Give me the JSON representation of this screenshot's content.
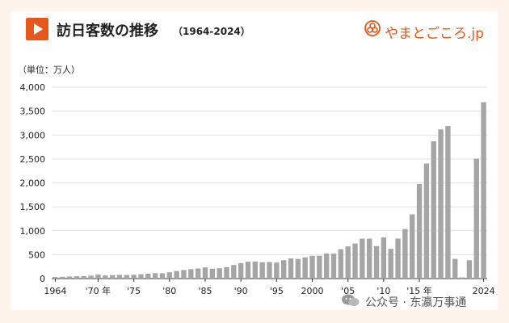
{
  "header": {
    "title": "訪日客数の推移",
    "subtitle": "（1964-2024）",
    "logo_text": "やまとごころ.jp",
    "play_icon": "play-icon",
    "logo_icon": "yamato-crest-icon"
  },
  "watermark": "公众号 · 东瀛万事通",
  "colors": {
    "accent": "#e8571a",
    "bar": "#a5a5a5",
    "grid": "#d9d9d9"
  },
  "chart_data": {
    "type": "bar",
    "ylabel": "（単位：万人）",
    "ylim": [
      0,
      4000
    ],
    "yticks": [
      "0",
      "500",
      "1,000",
      "1,500",
      "2,000",
      "2,500",
      "3,000",
      "3,500",
      "4,000"
    ],
    "ytick_values": [
      0,
      500,
      1000,
      1500,
      2000,
      2500,
      3000,
      3500,
      4000
    ],
    "xtick_labels": [
      {
        "year": 1964,
        "label": "1964"
      },
      {
        "year": 1970,
        "label": "'70 年"
      },
      {
        "year": 1975,
        "label": "'75"
      },
      {
        "year": 1980,
        "label": "'80"
      },
      {
        "year": 1985,
        "label": "'85"
      },
      {
        "year": 1990,
        "label": "'90"
      },
      {
        "year": 1995,
        "label": "'95"
      },
      {
        "year": 2000,
        "label": "2000"
      },
      {
        "year": 2005,
        "label": "'05"
      },
      {
        "year": 2010,
        "label": "'10"
      },
      {
        "year": 2015,
        "label": "'15 年"
      },
      {
        "year": 2024,
        "label": "2024"
      }
    ],
    "x": [
      1964,
      1965,
      1966,
      1967,
      1968,
      1969,
      1970,
      1971,
      1972,
      1973,
      1974,
      1975,
      1976,
      1977,
      1978,
      1979,
      1980,
      1981,
      1982,
      1983,
      1984,
      1985,
      1986,
      1987,
      1988,
      1989,
      1990,
      1991,
      1992,
      1993,
      1994,
      1995,
      1996,
      1997,
      1998,
      1999,
      2000,
      2001,
      2002,
      2003,
      2004,
      2005,
      2006,
      2007,
      2008,
      2009,
      2010,
      2011,
      2012,
      2013,
      2014,
      2015,
      2016,
      2017,
      2018,
      2019,
      2020,
      2021,
      2022,
      2023,
      2024
    ],
    "values": [
      35,
      37,
      43,
      48,
      52,
      61,
      85,
      66,
      72,
      78,
      76,
      81,
      91,
      103,
      113,
      111,
      132,
      158,
      179,
      197,
      211,
      233,
      206,
      216,
      236,
      284,
      324,
      354,
      358,
      341,
      347,
      335,
      384,
      422,
      411,
      444,
      476,
      477,
      524,
      521,
      614,
      673,
      733,
      835,
      835,
      679,
      861,
      622,
      836,
      1036,
      1341,
      1974,
      2404,
      2869,
      3119,
      3188,
      412,
      25,
      383,
      2507,
      3687
    ]
  }
}
